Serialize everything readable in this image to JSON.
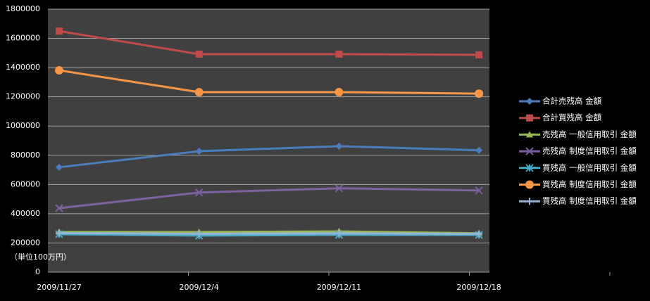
{
  "chart_data": {
    "type": "line",
    "annotation": "（単位100万円）",
    "categories": [
      "2009/11/27",
      "2009/12/4",
      "2009/12/11",
      "2009/12/18"
    ],
    "series": [
      {
        "name": "合計売残高 金額",
        "color": "#4a7ebb",
        "marker": "diamond",
        "values": [
          718000,
          828000,
          862000,
          834000
        ]
      },
      {
        "name": "合計買残高 金額",
        "color": "#be4b48",
        "marker": "square",
        "values": [
          1650000,
          1492000,
          1492000,
          1487000
        ]
      },
      {
        "name": "売残高 一般信用取引 金額",
        "color": "#98b954",
        "marker": "triangle",
        "values": [
          275000,
          275000,
          279000,
          266000
        ]
      },
      {
        "name": "売残高 制度信用取引 金額",
        "color": "#7d60a0",
        "marker": "x",
        "values": [
          438000,
          545000,
          574000,
          559000
        ]
      },
      {
        "name": "買残高 一般信用取引 金額",
        "color": "#46aac5",
        "marker": "star",
        "values": [
          260000,
          250000,
          255000,
          255000
        ]
      },
      {
        "name": "買残高 制度信用取引 金額",
        "color": "#f79646",
        "marker": "circle",
        "values": [
          1381000,
          1232000,
          1232000,
          1222000
        ]
      },
      {
        "name": "買残高 制度信用取引 金額",
        "color": "#95b3d7",
        "marker": "plus",
        "values": [
          268000,
          262000,
          266000,
          262000
        ]
      }
    ],
    "ylim": [
      0,
      1800000
    ],
    "yticks": [
      0,
      200000,
      400000,
      600000,
      800000,
      1000000,
      1200000,
      1400000,
      1600000,
      1800000
    ],
    "grid": true,
    "legend": "right"
  }
}
